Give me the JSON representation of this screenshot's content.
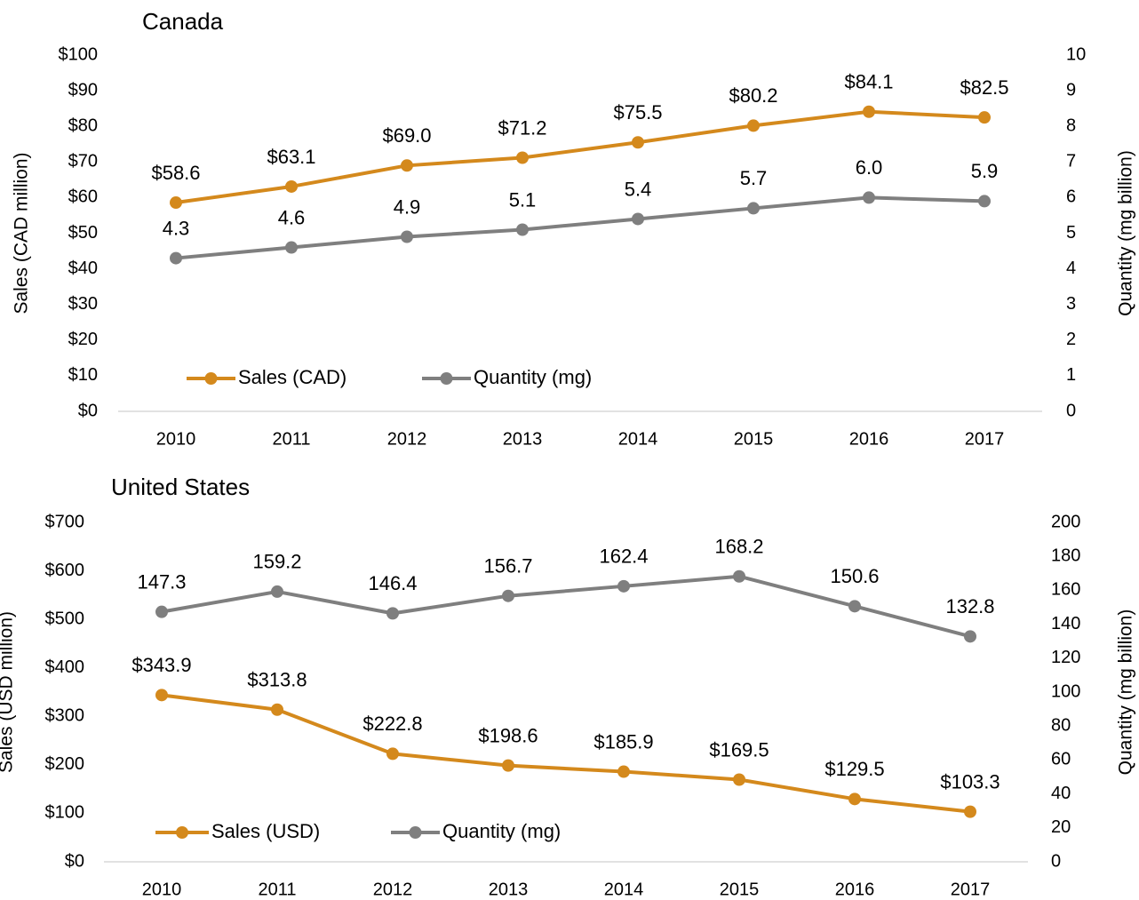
{
  "chart_data": [
    {
      "type": "line",
      "title": "Canada",
      "categories": [
        "2010",
        "2011",
        "2012",
        "2013",
        "2014",
        "2015",
        "2016",
        "2017"
      ],
      "ylabel": "Sales (CAD million)",
      "y2label": "Quantity (mg billion)",
      "ylim": [
        0,
        100
      ],
      "yticks": [
        {
          "value": 0,
          "label": "$0"
        },
        {
          "value": 10,
          "label": "$10"
        },
        {
          "value": 20,
          "label": "$20"
        },
        {
          "value": 30,
          "label": "$30"
        },
        {
          "value": 40,
          "label": "$40"
        },
        {
          "value": 50,
          "label": "$50"
        },
        {
          "value": 60,
          "label": "$60"
        },
        {
          "value": 70,
          "label": "$70"
        },
        {
          "value": 80,
          "label": "$80"
        },
        {
          "value": 90,
          "label": "$90"
        },
        {
          "value": 100,
          "label": "$100"
        }
      ],
      "y2lim": [
        0,
        10
      ],
      "y2ticks": [
        0,
        1,
        2,
        3,
        4,
        5,
        6,
        7,
        8,
        9,
        10
      ],
      "grid": false,
      "series": [
        {
          "name": "Sales (CAD)",
          "color": "#d4891c",
          "axis": "y",
          "values": [
            58.6,
            63.1,
            69.0,
            71.2,
            75.5,
            80.2,
            84.1,
            82.5
          ],
          "value_labels": [
            "$58.6",
            "$63.1",
            "$69.0",
            "$71.2",
            "$75.5",
            "$80.2",
            "$84.1",
            "$82.5"
          ]
        },
        {
          "name": "Quantity (mg)",
          "color": "#7f7f7f",
          "axis": "y2",
          "values": [
            4.3,
            4.6,
            4.9,
            5.1,
            5.4,
            5.7,
            6.0,
            5.9
          ],
          "value_labels": [
            "4.3",
            "4.6",
            "4.9",
            "5.1",
            "5.4",
            "5.7",
            "6.0",
            "5.9"
          ]
        }
      ]
    },
    {
      "type": "line",
      "title": "United States",
      "categories": [
        "2010",
        "2011",
        "2012",
        "2013",
        "2014",
        "2015",
        "2016",
        "2017"
      ],
      "ylabel": "Sales (USD million)",
      "y2label": "Quantity (mg billion)",
      "ylim": [
        0,
        700
      ],
      "yticks": [
        {
          "value": 0,
          "label": "$0"
        },
        {
          "value": 100,
          "label": "$100"
        },
        {
          "value": 200,
          "label": "$200"
        },
        {
          "value": 300,
          "label": "$300"
        },
        {
          "value": 400,
          "label": "$400"
        },
        {
          "value": 500,
          "label": "$500"
        },
        {
          "value": 600,
          "label": "$600"
        },
        {
          "value": 700,
          "label": "$700"
        }
      ],
      "y2lim": [
        0,
        200
      ],
      "y2ticks": [
        0,
        20,
        40,
        60,
        80,
        100,
        120,
        140,
        160,
        180,
        200
      ],
      "grid": false,
      "series": [
        {
          "name": "Sales (USD)",
          "color": "#d4891c",
          "axis": "y",
          "values": [
            343.9,
            313.8,
            222.8,
            198.6,
            185.9,
            169.5,
            129.5,
            103.3
          ],
          "value_labels": [
            "$343.9",
            "$313.8",
            "$222.8",
            "$198.6",
            "$185.9",
            "$169.5",
            "$129.5",
            "$103.3"
          ]
        },
        {
          "name": "Quantity (mg)",
          "color": "#7f7f7f",
          "axis": "y2",
          "values": [
            147.3,
            159.2,
            146.4,
            156.7,
            162.4,
            168.2,
            150.6,
            132.8
          ],
          "value_labels": [
            "147.3",
            "159.2",
            "146.4",
            "156.7",
            "162.4",
            "168.2",
            "150.6",
            "132.8"
          ]
        }
      ]
    }
  ]
}
